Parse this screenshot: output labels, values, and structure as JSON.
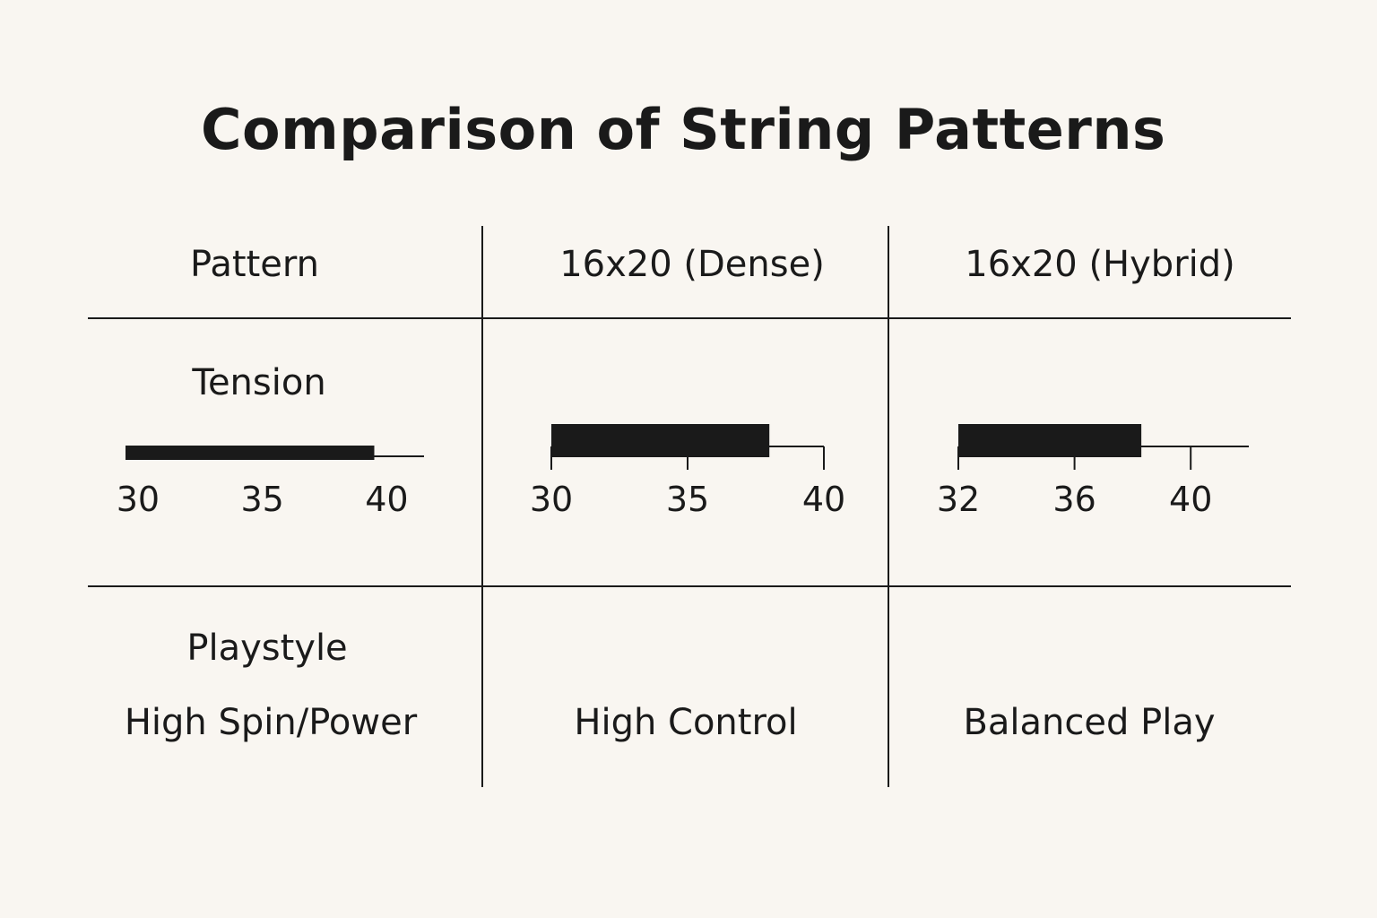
{
  "title": "Comparison of String Patterns",
  "header": {
    "col1": "Pattern",
    "col2": "16x20 (Dense)",
    "col3": "16x20 (Hybrid)"
  },
  "rows": {
    "tension_label": "Tension",
    "playstyle_label": "Playstyle",
    "playstyle": [
      "High Spin/Power",
      "High Control",
      "Balanced Play"
    ]
  },
  "colors": {
    "ink": "#1a1a1a",
    "background": "#f9f6f1"
  },
  "chart_data": [
    {
      "type": "bar",
      "name": "Pattern",
      "axis": {
        "min": 29.5,
        "max": 41.5,
        "ticks": [
          30,
          35,
          40
        ]
      },
      "range": [
        29.5,
        39.5
      ]
    },
    {
      "type": "bar",
      "name": "16x20 (Dense)",
      "axis": {
        "min": 30,
        "max": 40,
        "ticks": [
          30,
          35,
          40
        ]
      },
      "range": [
        30,
        38
      ]
    },
    {
      "type": "bar",
      "name": "16x20 (Hybrid)",
      "axis": {
        "min": 32,
        "max": 42,
        "ticks": [
          32,
          36,
          40
        ]
      },
      "range": [
        32,
        38.3
      ]
    }
  ]
}
